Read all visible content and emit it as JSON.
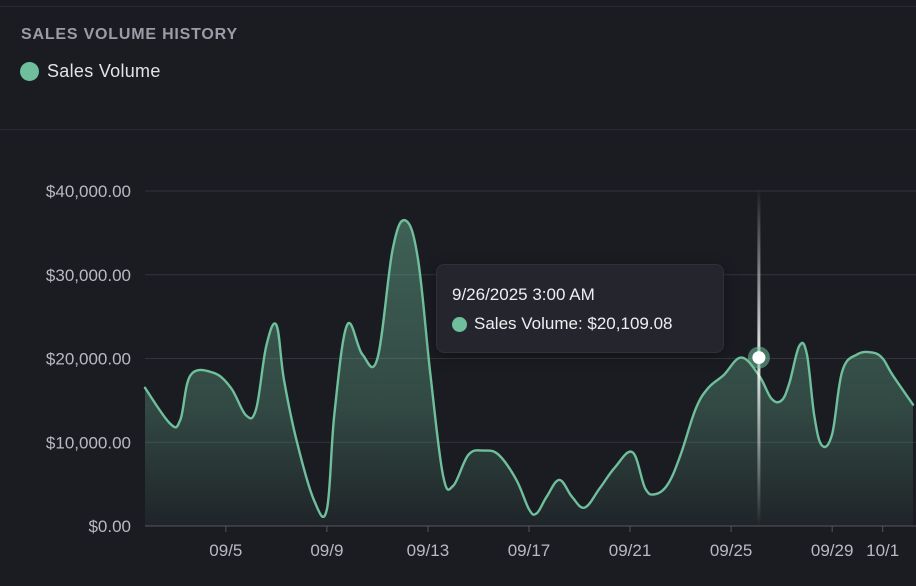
{
  "panel": {
    "title": "SALES VOLUME HISTORY"
  },
  "colors": {
    "series": "#6fbf9c",
    "background": "#1b1c22",
    "grid": "#33343c"
  },
  "tooltip": {
    "date": "9/26/2025 3:00 AM",
    "label": "Sales Volume: $20,109.08"
  },
  "chart_data": {
    "type": "area",
    "title": "SALES VOLUME HISTORY",
    "xlabel": "",
    "ylabel": "",
    "ylim": [
      0,
      40000
    ],
    "y_ticks": [
      "$0.00",
      "$10,000.00",
      "$20,000.00",
      "$30,000.00",
      "$40,000.00"
    ],
    "y_tick_values": [
      0,
      10000,
      20000,
      30000,
      40000
    ],
    "x_ticks": [
      "09/5",
      "09/9",
      "09/13",
      "09/17",
      "09/21",
      "09/25",
      "09/29",
      "10/1"
    ],
    "x_tick_days": [
      5,
      9,
      13,
      17,
      21,
      25,
      29,
      31
    ],
    "x_range_days": [
      1.8,
      32.2
    ],
    "grid": true,
    "legend": "top-left",
    "highlight": {
      "x_day": 26.1,
      "y": 20109.08
    },
    "series": [
      {
        "name": "Sales Volume",
        "x_days": [
          1.8,
          2.8,
          3.2,
          3.6,
          4.5,
          5.2,
          5.8,
          6.2,
          6.6,
          7.0,
          7.3,
          7.8,
          8.5,
          9.0,
          9.3,
          9.8,
          10.4,
          11.0,
          11.6,
          12.1,
          12.6,
          13.1,
          13.6,
          14.0,
          14.6,
          15.2,
          15.8,
          16.5,
          17.0,
          17.3,
          17.7,
          18.2,
          18.7,
          19.2,
          19.8,
          20.4,
          21.1,
          21.6,
          22.0,
          22.5,
          23.0,
          23.6,
          24.1,
          24.7,
          25.4,
          26.1,
          26.6,
          27.0,
          27.3,
          27.7,
          28.0,
          28.3,
          28.6,
          29.0,
          29.4,
          30.0,
          30.6,
          31.0,
          31.4,
          32.2
        ],
        "values": [
          16500,
          12200,
          12700,
          18000,
          18300,
          16500,
          13200,
          14000,
          21500,
          24000,
          17500,
          10200,
          3000,
          2000,
          13500,
          24000,
          20500,
          20000,
          33000,
          36500,
          32000,
          18000,
          6000,
          4800,
          8500,
          9000,
          8500,
          5500,
          2000,
          1500,
          3500,
          5500,
          3500,
          2200,
          4500,
          7000,
          8800,
          4500,
          3800,
          5000,
          8500,
          14000,
          16500,
          18000,
          20109,
          18000,
          15200,
          15000,
          17000,
          21500,
          20500,
          13000,
          9600,
          11000,
          18500,
          20500,
          20700,
          20000,
          18000,
          14500
        ]
      }
    ]
  }
}
